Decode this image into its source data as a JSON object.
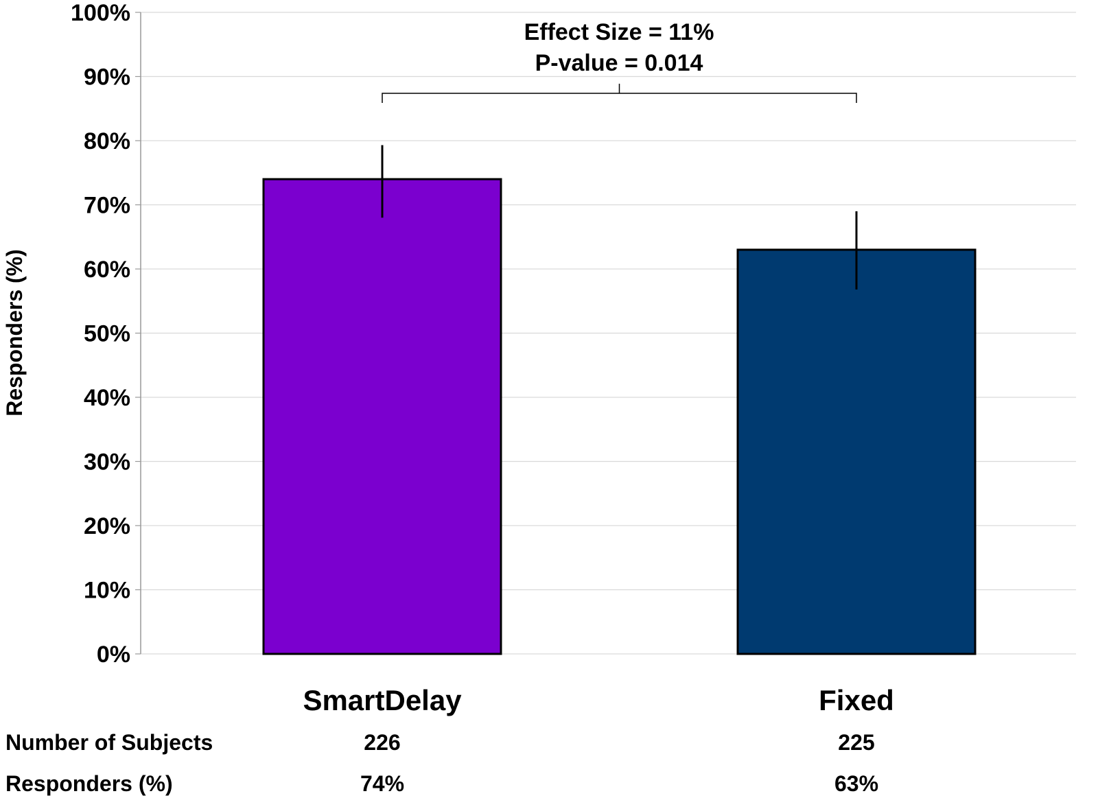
{
  "chart_data": {
    "type": "bar",
    "categories": [
      "SmartDelay",
      "Fixed"
    ],
    "values": [
      74,
      63
    ],
    "error_bars": [
      {
        "low": 68,
        "high": 79.3
      },
      {
        "low": 56.8,
        "high": 69
      }
    ],
    "colors": [
      "#7b00cf",
      "#003a70"
    ],
    "ylabel": "Responders (%)",
    "ylim": [
      0,
      100
    ],
    "yticks": [
      0,
      10,
      20,
      30,
      40,
      50,
      60,
      70,
      80,
      90,
      100
    ],
    "ytick_suffix": "%",
    "grid": true,
    "annotation": {
      "line1": "Effect Size = 11%",
      "line2": "P-value = 0.014"
    },
    "table": {
      "rows": [
        {
          "label": "Number of Subjects",
          "values": [
            "226",
            "225"
          ]
        },
        {
          "label": "Responders (%)",
          "values": [
            "74%",
            "63%"
          ]
        }
      ]
    }
  }
}
